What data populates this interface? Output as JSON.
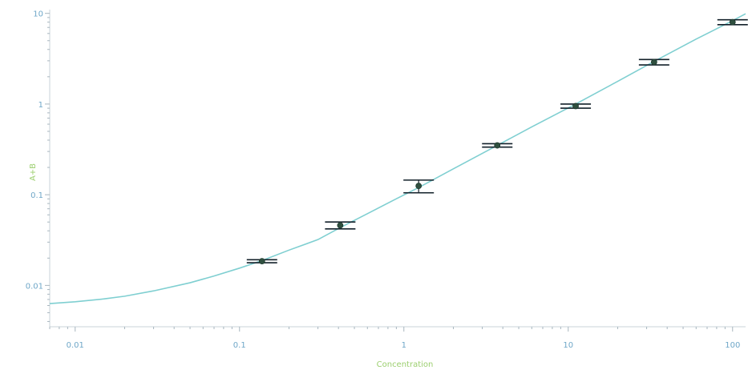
{
  "chart_data": {
    "type": "scatter",
    "title": "",
    "xlabel": "Concentration",
    "ylabel": "A+B",
    "xscale": "log",
    "yscale": "log",
    "xlim": [
      0.007,
      120
    ],
    "ylim": [
      0.0035,
      11
    ],
    "x_ticks": [
      {
        "value": 0.01,
        "label": "0.01"
      },
      {
        "value": 0.1,
        "label": "0.1"
      },
      {
        "value": 1,
        "label": "1"
      },
      {
        "value": 10,
        "label": "10"
      },
      {
        "value": 100,
        "label": "100"
      }
    ],
    "y_ticks": [
      {
        "value": 0.01,
        "label": "0.01"
      },
      {
        "value": 0.1,
        "label": "0.1"
      },
      {
        "value": 1,
        "label": "1"
      },
      {
        "value": 10,
        "label": "10"
      }
    ],
    "grid": false,
    "legend": "none",
    "points": [
      {
        "x": 0.137,
        "y": 0.0185,
        "y_low": 0.0178,
        "y_high": 0.0192
      },
      {
        "x": 0.41,
        "y": 0.046,
        "y_low": 0.042,
        "y_high": 0.05
      },
      {
        "x": 1.23,
        "y": 0.125,
        "y_low": 0.105,
        "y_high": 0.145
      },
      {
        "x": 3.7,
        "y": 0.35,
        "y_low": 0.335,
        "y_high": 0.365
      },
      {
        "x": 11.1,
        "y": 0.95,
        "y_low": 0.9,
        "y_high": 1.0
      },
      {
        "x": 33.3,
        "y": 2.9,
        "y_low": 2.7,
        "y_high": 3.1
      },
      {
        "x": 100,
        "y": 8.0,
        "y_low": 7.5,
        "y_high": 8.5
      }
    ],
    "fit_curve": {
      "x": [
        0.007,
        0.01,
        0.015,
        0.02,
        0.03,
        0.05,
        0.07,
        0.1,
        0.137,
        0.2,
        0.3,
        0.41,
        0.6,
        0.9,
        1.23,
        2,
        3.7,
        6,
        11.1,
        20,
        33.3,
        60,
        100,
        120
      ],
      "y": [
        0.0063,
        0.0066,
        0.0071,
        0.0076,
        0.0087,
        0.0107,
        0.0127,
        0.0155,
        0.0188,
        0.0245,
        0.032,
        0.0434,
        0.0618,
        0.0903,
        0.12,
        0.193,
        0.35,
        0.56,
        1.0,
        1.78,
        2.95,
        5.2,
        8.3,
        9.9
      ]
    },
    "colors": {
      "curve": "#7fcfd1",
      "point": "#2f4f3f",
      "error_bar": "#13202a",
      "tick_label": "#6fa7c8",
      "axis_title": "#9ccf6f"
    }
  }
}
